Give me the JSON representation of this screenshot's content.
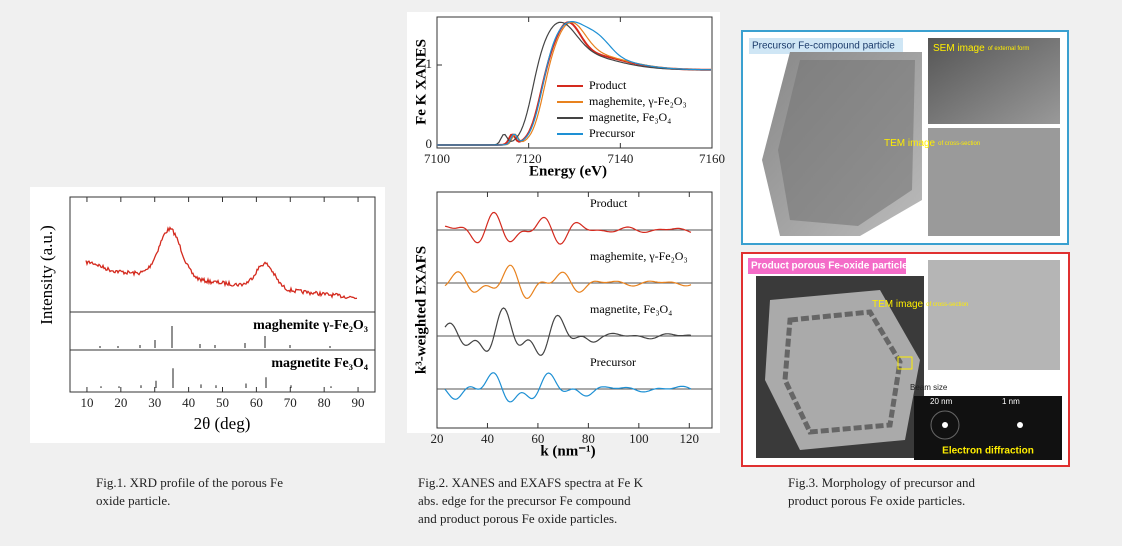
{
  "figures": [
    {
      "ylabel": "Intensity (a.u.)",
      "xlabel": "2θ (deg)",
      "xlim": [
        5,
        95
      ],
      "xticks": [
        10,
        20,
        30,
        40,
        50,
        60,
        70,
        80,
        90
      ],
      "references": [
        "maghemite γ-Fe₂O₃",
        "magnetite Fe₃O₄"
      ],
      "caption": [
        "Fig.1. XRD profile of the porous Fe",
        "oxide particle."
      ]
    },
    {
      "xanes": {
        "ylabel": "Fe K XANES",
        "xlabel": "Energy (eV)",
        "xlim": [
          7100,
          7160
        ],
        "xticks": [
          7100,
          7120,
          7140,
          7160
        ],
        "yticks": [
          0,
          1
        ],
        "legend": [
          {
            "name": "Product",
            "color": "#d42a1e"
          },
          {
            "name": "maghemite, γ-Fe₂O₃",
            "color": "#e8821e"
          },
          {
            "name": "magnetite, Fe₃O₄",
            "color": "#444444"
          },
          {
            "name": "Precursor",
            "color": "#1e90d4"
          }
        ]
      },
      "exafs": {
        "ylabel": "k³-weighted EXAFS",
        "xlabel": "k (nm⁻¹)",
        "xlim": [
          20,
          129
        ],
        "xticks": [
          20,
          40,
          60,
          80,
          100,
          120
        ],
        "curve_labels": [
          "Product",
          "maghemite, γ-Fe₂O₃",
          "magnetite, Fe₃O₄",
          "Precursor"
        ]
      },
      "caption": [
        "Fig.2. XANES and EXAFS spectra at Fe K",
        "abs. edge for the precursor Fe compound",
        "and product porous Fe oxide particles."
      ]
    },
    {
      "top": {
        "title": "Precursor Fe-compound particle",
        "sem": "SEM image",
        "sem_note": "of external form",
        "tem": "TEM image",
        "tem_note": "of cross-section"
      },
      "bottom": {
        "title": "Product porous Fe-oxide particle",
        "tem": "TEM image",
        "tem_note": "of cross-section",
        "beam": "Beam size",
        "scale1": "20 nm",
        "scale2": "1 nm",
        "diffraction": "Electron diffraction"
      },
      "caption": [
        "Fig.3. Morphology of precursor and",
        "product porous Fe oxide particles."
      ]
    }
  ]
}
